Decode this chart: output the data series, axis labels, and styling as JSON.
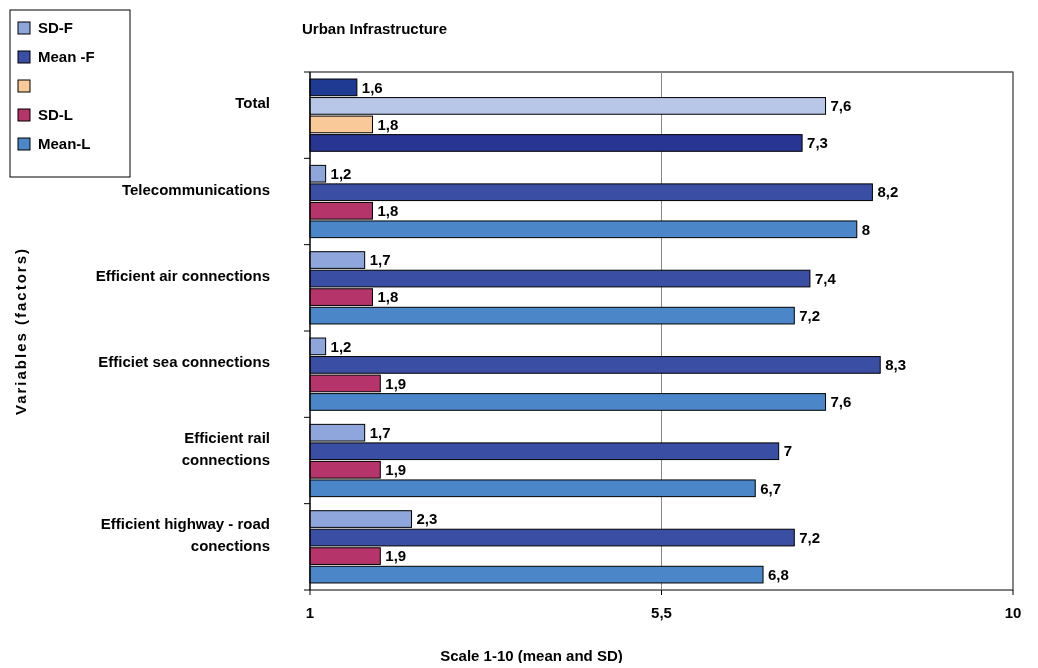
{
  "chart_data": {
    "type": "bar",
    "orientation": "horizontal",
    "title": "Urban Infrastructure",
    "xlabel": "Scale 1-10 (mean and SD)",
    "ylabel": "Variables  (factors)",
    "categories": [
      "Total",
      "Telecommunications",
      "Efficient air connections",
      "Efficiet sea connections",
      "Efficient rail connections",
      "Efficient highway - road conections"
    ],
    "series": [
      {
        "name": "SD-F",
        "color": "#8ea6dc",
        "colors": [
          "#1f3a93",
          "#8ea6dc",
          "#8ea6dc",
          "#8ea6dc",
          "#8ea6dc",
          "#8ea6dc"
        ],
        "values": [
          1.6,
          1.2,
          1.7,
          1.2,
          1.7,
          2.3
        ],
        "value_labels": [
          "1,6",
          "1,2",
          "1,7",
          "1,2",
          "1,7",
          "2,3"
        ]
      },
      {
        "name": "Mean -F",
        "color": "#3a4ea3",
        "colors": [
          "#b8c6e8",
          "#3a4ea3",
          "#3a4ea3",
          "#3a4ea3",
          "#3a4ea3",
          "#3a4ea3"
        ],
        "values": [
          7.6,
          8.2,
          7.4,
          8.3,
          7,
          7.2
        ],
        "value_labels": [
          "7,6",
          "8,2",
          "7,4",
          "8,3",
          "7",
          "7,2"
        ]
      },
      {
        "color": "#f9c99a",
        "values": [
          null,
          null,
          null,
          null,
          null,
          null
        ]
      },
      {
        "name": "SD-L",
        "color": "#b5356b",
        "colors": [
          "#f9c99a",
          "#b5356b",
          "#b5356b",
          "#b5356b",
          "#b5356b",
          "#b5356b"
        ],
        "values": [
          1.8,
          1.8,
          1.8,
          1.9,
          1.9,
          1.9
        ],
        "value_labels": [
          "1,8",
          "1,8",
          "1,8",
          "1,9",
          "1,9",
          "1,9"
        ]
      },
      {
        "name": "Mean-L",
        "color": "#4a86c8",
        "colors": [
          "#283593",
          "#4a86c8",
          "#4a86c8",
          "#4a86c8",
          "#4a86c8",
          "#4a86c8"
        ],
        "values": [
          7.3,
          8,
          7.2,
          7.6,
          6.7,
          6.8
        ],
        "value_labels": [
          "7,3",
          "8",
          "7,2",
          "7,6",
          "6,7",
          "6,8"
        ]
      }
    ],
    "xlim": [
      1,
      10
    ],
    "xticks": [
      1,
      {
        "value": 5.5,
        "label": "5,5"
      },
      10
    ],
    "grid": "x",
    "legend": "top left"
  }
}
